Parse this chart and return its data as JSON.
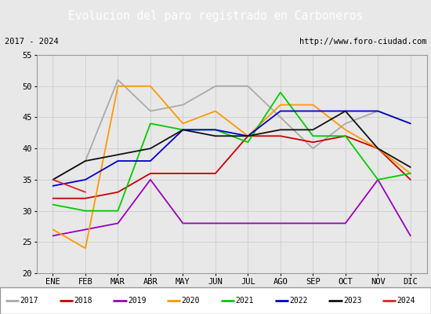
{
  "title": "Evolucion del paro registrado en Carboneros",
  "title_color": "#ffffff",
  "title_bg": "#5b8dd9",
  "subtitle_left": "2017 - 2024",
  "subtitle_right": "http://www.foro-ciudad.com",
  "months": [
    "ENE",
    "FEB",
    "MAR",
    "ABR",
    "MAY",
    "JUN",
    "JUL",
    "AGO",
    "SEP",
    "OCT",
    "NOV",
    "DIC"
  ],
  "ylim": [
    20,
    55
  ],
  "yticks": [
    20,
    25,
    30,
    35,
    40,
    45,
    50,
    55
  ],
  "series": {
    "2017": {
      "color": "#aaaaaa",
      "values": [
        35,
        38,
        51,
        46,
        47,
        50,
        50,
        45,
        40,
        44,
        46,
        44
      ]
    },
    "2018": {
      "color": "#cc0000",
      "values": [
        32,
        32,
        33,
        36,
        36,
        36,
        42,
        42,
        41,
        42,
        40,
        35
      ]
    },
    "2019": {
      "color": "#9900bb",
      "values": [
        26,
        27,
        28,
        35,
        28,
        28,
        28,
        28,
        28,
        28,
        35,
        26
      ]
    },
    "2020": {
      "color": "#ff9900",
      "values": [
        27,
        24,
        50,
        50,
        44,
        46,
        42,
        47,
        47,
        43,
        40,
        36
      ]
    },
    "2021": {
      "color": "#00cc00",
      "values": [
        31,
        30,
        30,
        44,
        43,
        43,
        41,
        49,
        42,
        42,
        35,
        36
      ]
    },
    "2022": {
      "color": "#0000cc",
      "values": [
        34,
        35,
        38,
        38,
        43,
        43,
        42,
        46,
        46,
        46,
        46,
        44
      ]
    },
    "2023": {
      "color": "#111111",
      "values": [
        35,
        38,
        39,
        40,
        43,
        42,
        42,
        43,
        43,
        46,
        40,
        37
      ]
    },
    "2024": {
      "color": "#dd2222",
      "values": [
        35,
        33,
        null,
        null,
        null,
        null,
        null,
        null,
        null,
        null,
        null,
        null
      ]
    }
  },
  "legend_order": [
    "2017",
    "2018",
    "2019",
    "2020",
    "2021",
    "2022",
    "2023",
    "2024"
  ],
  "outer_bg": "#e8e8e8",
  "plot_bg": "#e8e8e8",
  "grid_color": "#cccccc"
}
